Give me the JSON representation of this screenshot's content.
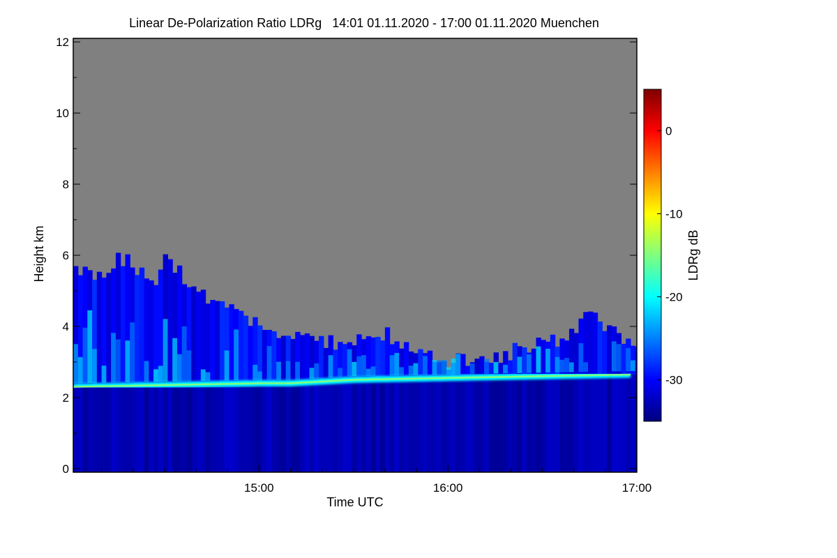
{
  "chart_data": {
    "type": "heatmap",
    "title": "Linear De-Polarization Ratio LDRg   14:01 01.11.2020 - 17:00 01.11.2020 Muenchen",
    "xlabel": "Time UTC",
    "ylabel": "Height km",
    "x_range_utc": [
      "14:01",
      "17:00"
    ],
    "x_tick_labels": [
      "15:00",
      "16:00",
      "17:00"
    ],
    "x_ticks_hours": [
      15,
      16,
      17
    ],
    "y_range_km": [
      -0.1,
      12.1
    ],
    "y_ticks_km": [
      0,
      2,
      4,
      6,
      8,
      10,
      12
    ],
    "y_tick_labels": [
      "0",
      "2",
      "4",
      "6",
      "8",
      "10",
      "12"
    ],
    "colorbar": {
      "label": "LDRg dB",
      "range_db": [
        -35,
        5
      ],
      "ticks_db": [
        0,
        -10,
        -20,
        -30
      ],
      "tick_labels": [
        "0",
        "-10",
        "-20",
        "-30"
      ],
      "colormap": "jet"
    },
    "background_color": "#808080",
    "echo_top_km_by_time": [
      {
        "time": "14:01",
        "top_km": 5.7
      },
      {
        "time": "14:10",
        "top_km": 5.4
      },
      {
        "time": "14:15",
        "top_km": 6.0
      },
      {
        "time": "14:25",
        "top_km": 5.2
      },
      {
        "time": "14:30",
        "top_km": 5.9
      },
      {
        "time": "14:40",
        "top_km": 5.0
      },
      {
        "time": "14:50",
        "top_km": 4.5
      },
      {
        "time": "15:00",
        "top_km": 4.1
      },
      {
        "time": "15:10",
        "top_km": 3.7
      },
      {
        "time": "15:20",
        "top_km": 3.5
      },
      {
        "time": "15:30",
        "top_km": 3.6
      },
      {
        "time": "15:40",
        "top_km": 3.8
      },
      {
        "time": "15:50",
        "top_km": 3.4
      },
      {
        "time": "16:00",
        "top_km": 3.0
      },
      {
        "time": "16:10",
        "top_km": 3.1
      },
      {
        "time": "16:20",
        "top_km": 3.3
      },
      {
        "time": "16:30",
        "top_km": 3.5
      },
      {
        "time": "16:40",
        "top_km": 3.9
      },
      {
        "time": "16:45",
        "top_km": 4.4
      },
      {
        "time": "16:50",
        "top_km": 3.8
      },
      {
        "time": "17:00",
        "top_km": 3.6
      }
    ],
    "melting_layer_km_by_time": [
      {
        "time": "14:01",
        "height_km": 2.3
      },
      {
        "time": "14:30",
        "height_km": 2.35
      },
      {
        "time": "15:00",
        "height_km": 2.4
      },
      {
        "time": "15:10",
        "height_km": 2.4
      },
      {
        "time": "15:30",
        "height_km": 2.5
      },
      {
        "time": "16:00",
        "height_km": 2.55
      },
      {
        "time": "16:30",
        "height_km": 2.6
      },
      {
        "time": "17:00",
        "height_km": 2.65
      }
    ],
    "melting_layer_ldr_db": -20,
    "rain_below_ldr_db": -33,
    "ice_above_ldr_db": -30
  }
}
